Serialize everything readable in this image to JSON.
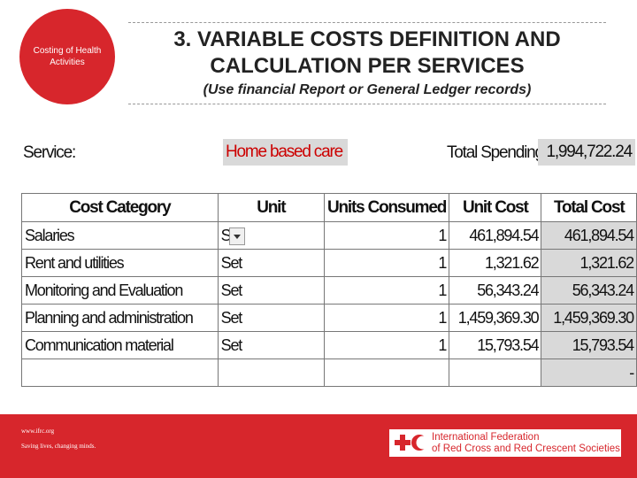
{
  "header": {
    "badge": "Costing of Health Activities",
    "title": [
      "3. VARIABLE COSTS DEFINITION AND",
      "CALCULATION PER SERVICES"
    ],
    "subtitle": "(Use financial Report or General Ledger records)"
  },
  "summary": {
    "service_label": "Service:",
    "service_value": "Home based care",
    "spending_label": "Total Spending:",
    "spending_value": "1,994,722.24"
  },
  "table": {
    "columns": [
      "Cost Category",
      "Unit",
      "Units Consumed",
      "Unit Cost",
      "Total Cost"
    ],
    "rows": [
      [
        "Salaries",
        "S",
        "1",
        "461,894.54",
        "461,894.54"
      ],
      [
        "Rent and utilities",
        "Set",
        "1",
        "1,321.62",
        "1,321.62"
      ],
      [
        "Monitoring and Evaluation",
        "Set",
        "1",
        "56,343.24",
        "56,343.24"
      ],
      [
        "Planning and administration",
        "Set",
        "1",
        "1,459,369.30",
        "1,459,369.30"
      ],
      [
        "Communication material",
        "Set",
        "1",
        "15,793.54",
        "15,793.54"
      ],
      [
        null,
        null,
        null,
        null,
        "-"
      ]
    ]
  },
  "footer": {
    "url": "www.ifrc.org",
    "slogan": "Saving lives, changing minds.",
    "logo": [
      "International Federation",
      "of Red Cross and Red Crescent Societies"
    ]
  }
}
